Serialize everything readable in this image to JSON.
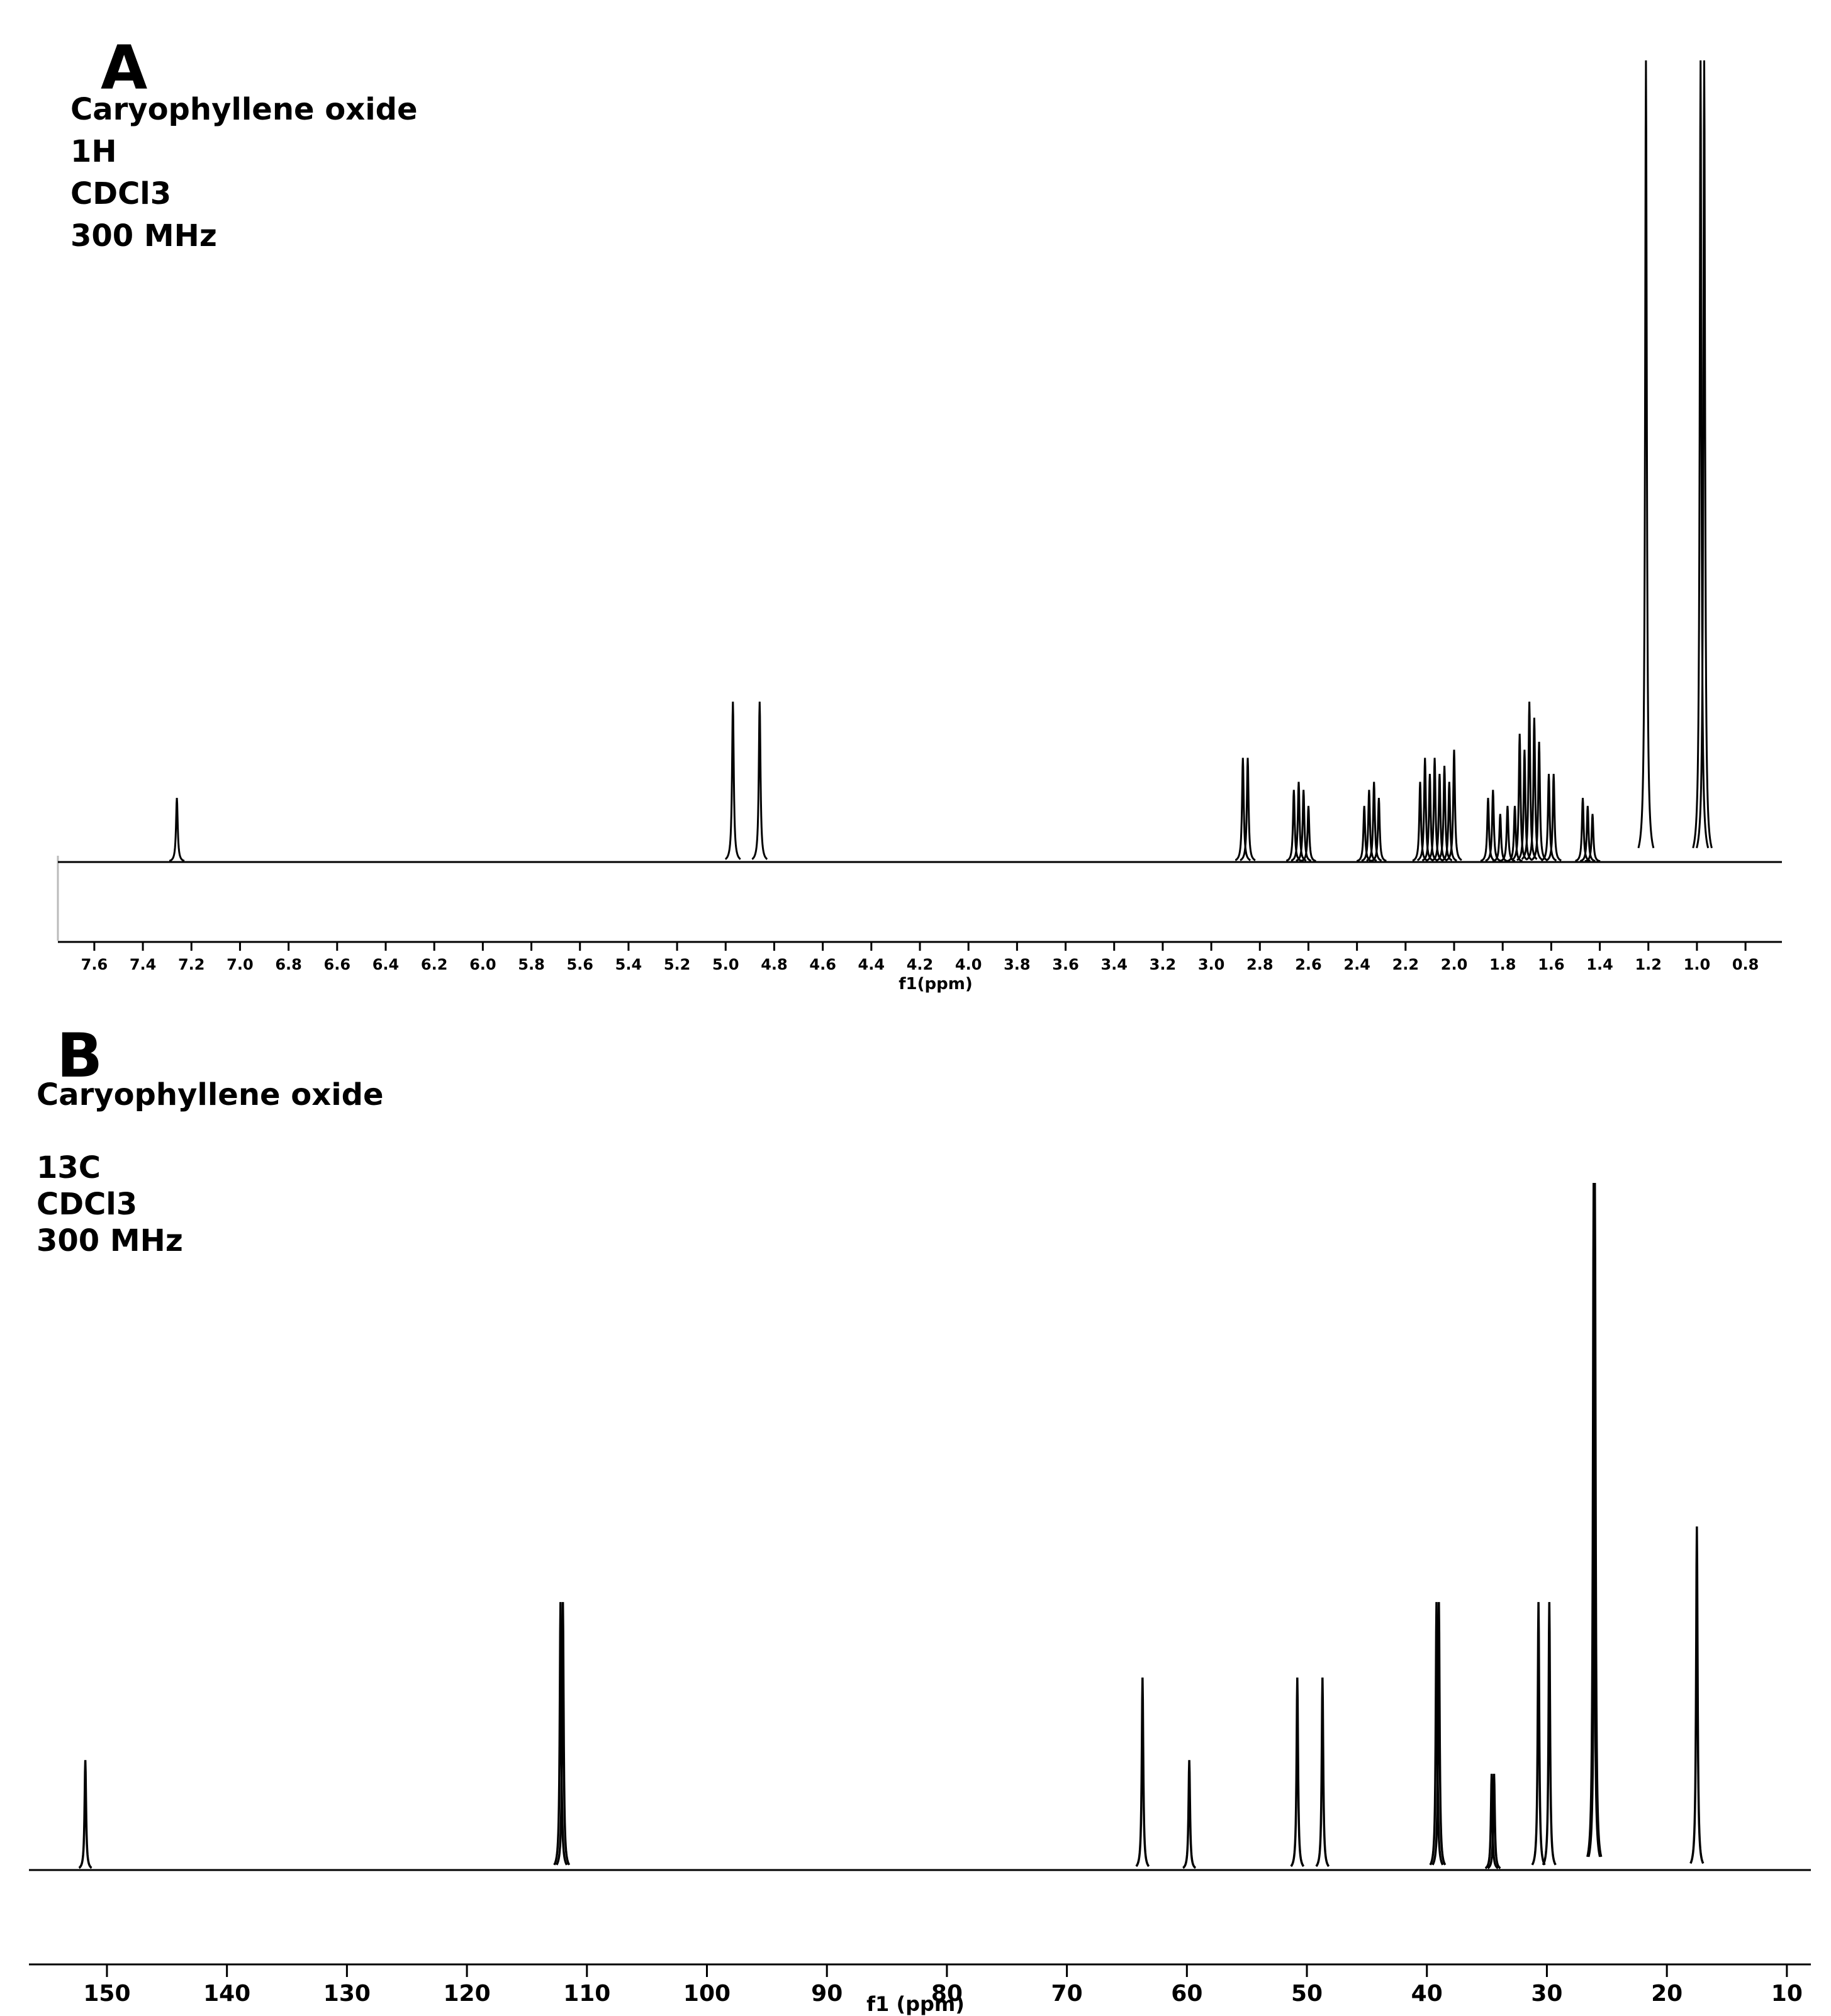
{
  "panels": [
    {
      "letter": "A",
      "info": [
        "Caryophyllene oxide",
        "1H",
        "CDCl3",
        "300 MHz"
      ]
    },
    {
      "letter": "B",
      "info": [
        "Caryophyllene oxide",
        "",
        "13C",
        "CDCl3",
        "300 MHz"
      ]
    }
  ],
  "chart_data": [
    {
      "type": "line",
      "subtype": "nmr-spectrum",
      "xlabel": "f1(ppm)",
      "xlim": [
        7.75,
        0.65
      ],
      "x_reversed": true,
      "ylim": [
        0,
        1
      ],
      "grid": false,
      "xticks": [
        7.6,
        7.4,
        7.2,
        7.0,
        6.8,
        6.6,
        6.4,
        6.2,
        6.0,
        5.8,
        5.6,
        5.4,
        5.2,
        5.0,
        4.8,
        4.6,
        4.4,
        4.2,
        4.0,
        3.8,
        3.6,
        3.4,
        3.2,
        3.0,
        2.8,
        2.6,
        2.4,
        2.2,
        2.0,
        1.8,
        1.6,
        1.4,
        1.2,
        1.0,
        0.8
      ],
      "tick_labels": [
        "7.6",
        "7.4",
        "7.2",
        "7.0",
        "6.8",
        "6.6",
        "6.4",
        "6.2",
        "6.0",
        "5.8",
        "5.6",
        "5.4",
        "5.2",
        "5.0",
        "4.8",
        "4.6",
        "4.4",
        "4.2",
        "4.0",
        "3.8",
        "3.6",
        "3.4",
        "3.2",
        "3.0",
        "2.8",
        "2.6",
        "2.4",
        "2.2",
        "2.0",
        "1.8",
        "1.6",
        "1.4",
        "1.2",
        "1.0",
        "0.8"
      ],
      "peaks": [
        {
          "ppm": 7.26,
          "intensity": 0.08
        },
        {
          "ppm": 4.97,
          "intensity": 0.2
        },
        {
          "ppm": 4.86,
          "intensity": 0.2
        },
        {
          "ppm": 2.87,
          "intensity": 0.13
        },
        {
          "ppm": 2.85,
          "intensity": 0.13
        },
        {
          "ppm": 2.66,
          "intensity": 0.09
        },
        {
          "ppm": 2.64,
          "intensity": 0.1
        },
        {
          "ppm": 2.62,
          "intensity": 0.09
        },
        {
          "ppm": 2.6,
          "intensity": 0.07
        },
        {
          "ppm": 2.37,
          "intensity": 0.07
        },
        {
          "ppm": 2.35,
          "intensity": 0.09
        },
        {
          "ppm": 2.33,
          "intensity": 0.1
        },
        {
          "ppm": 2.31,
          "intensity": 0.08
        },
        {
          "ppm": 2.14,
          "intensity": 0.1
        },
        {
          "ppm": 2.12,
          "intensity": 0.13
        },
        {
          "ppm": 2.1,
          "intensity": 0.11
        },
        {
          "ppm": 2.08,
          "intensity": 0.13
        },
        {
          "ppm": 2.06,
          "intensity": 0.11
        },
        {
          "ppm": 2.04,
          "intensity": 0.12
        },
        {
          "ppm": 2.02,
          "intensity": 0.1
        },
        {
          "ppm": 2.0,
          "intensity": 0.14
        },
        {
          "ppm": 1.86,
          "intensity": 0.08
        },
        {
          "ppm": 1.84,
          "intensity": 0.09
        },
        {
          "ppm": 1.81,
          "intensity": 0.06
        },
        {
          "ppm": 1.78,
          "intensity": 0.07
        },
        {
          "ppm": 1.75,
          "intensity": 0.07
        },
        {
          "ppm": 1.73,
          "intensity": 0.16
        },
        {
          "ppm": 1.71,
          "intensity": 0.14
        },
        {
          "ppm": 1.69,
          "intensity": 0.2
        },
        {
          "ppm": 1.67,
          "intensity": 0.18
        },
        {
          "ppm": 1.65,
          "intensity": 0.15
        },
        {
          "ppm": 1.61,
          "intensity": 0.11
        },
        {
          "ppm": 1.59,
          "intensity": 0.11
        },
        {
          "ppm": 1.47,
          "intensity": 0.08
        },
        {
          "ppm": 1.45,
          "intensity": 0.07
        },
        {
          "ppm": 1.43,
          "intensity": 0.06
        },
        {
          "ppm": 1.21,
          "intensity": 1.0
        },
        {
          "ppm": 0.985,
          "intensity": 1.0
        },
        {
          "ppm": 0.97,
          "intensity": 1.0
        }
      ]
    },
    {
      "type": "line",
      "subtype": "nmr-spectrum",
      "xlabel": "f1 (ppm)",
      "xlim": [
        156.5,
        8
      ],
      "x_reversed": true,
      "ylim": [
        0,
        1
      ],
      "grid": false,
      "xticks": [
        150,
        140,
        130,
        120,
        110,
        100,
        90,
        80,
        70,
        60,
        50,
        40,
        30,
        20,
        10
      ],
      "tick_labels": [
        "150",
        "140",
        "130",
        "120",
        "110",
        "100",
        "90",
        "80",
        "70",
        "60",
        "50",
        "40",
        "30",
        "20",
        "10"
      ],
      "peaks": [
        {
          "ppm": 151.8,
          "intensity": 0.16
        },
        {
          "ppm": 112.2,
          "intensity": 0.39
        },
        {
          "ppm": 112.0,
          "intensity": 0.39
        },
        {
          "ppm": 63.7,
          "intensity": 0.28
        },
        {
          "ppm": 59.8,
          "intensity": 0.16
        },
        {
          "ppm": 50.8,
          "intensity": 0.28
        },
        {
          "ppm": 48.7,
          "intensity": 0.28
        },
        {
          "ppm": 39.2,
          "intensity": 0.39
        },
        {
          "ppm": 39.0,
          "intensity": 0.39
        },
        {
          "ppm": 34.6,
          "intensity": 0.14
        },
        {
          "ppm": 34.4,
          "intensity": 0.14
        },
        {
          "ppm": 30.7,
          "intensity": 0.39
        },
        {
          "ppm": 29.8,
          "intensity": 0.39
        },
        {
          "ppm": 26.1,
          "intensity": 1.0
        },
        {
          "ppm": 26.0,
          "intensity": 1.0
        },
        {
          "ppm": 17.5,
          "intensity": 0.5
        }
      ]
    }
  ]
}
